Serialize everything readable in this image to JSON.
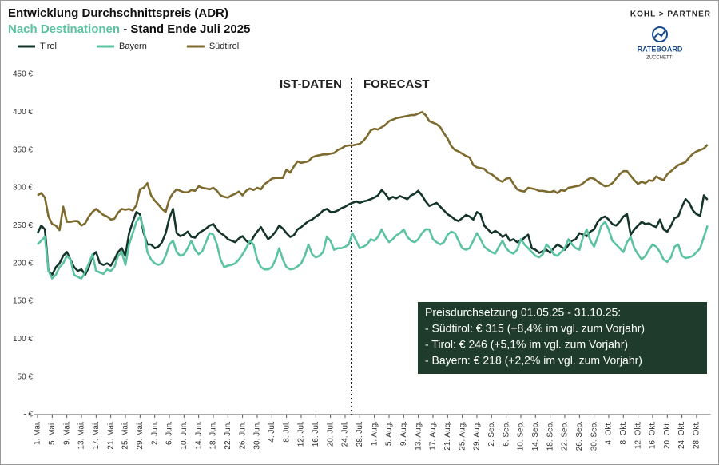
{
  "chart_data": {
    "type": "line",
    "title": "Entwicklung Durchschnittspreis (ADR)",
    "subtitle_highlight": "Nach Destinationen",
    "subtitle": " - Stand Ende Juli 2025",
    "brand": "KOHL > PARTNER",
    "logo_text": "RATEBOARD",
    "logo_subtext": "ZUCCHETTI",
    "annotations": [
      "IST-DATEN",
      "FORECAST"
    ],
    "info_box": [
      "Preisdurchsetzung 01.05.25 - 31.10.25:",
      "- Südtirol:  € 315 (+8,4% im vgl. zum Vorjahr)",
      "- Tirol:  € 246  (+5,1% im vgl. zum Vorjahr)",
      "- Bayern: € 218  (+2,2% im vgl. zum Vorjahr)"
    ],
    "ylim": [
      0,
      450
    ],
    "yticks": [
      {
        "value": 0,
        "label": "- €"
      },
      {
        "value": 50,
        "label": "50 €"
      },
      {
        "value": 100,
        "label": "100 €"
      },
      {
        "value": 150,
        "label": "150 €"
      },
      {
        "value": 200,
        "label": "200 €"
      },
      {
        "value": 250,
        "label": "250 €"
      },
      {
        "value": 300,
        "label": "300 €"
      },
      {
        "value": 350,
        "label": "350 €"
      },
      {
        "value": 400,
        "label": "400 €"
      },
      {
        "value": 450,
        "label": "450 €"
      }
    ],
    "grid": false,
    "categories": [
      "1. Mai.",
      null,
      null,
      null,
      "5. Mai.",
      null,
      null,
      null,
      "9. Mai.",
      null,
      null,
      null,
      "13. Mai.",
      null,
      null,
      null,
      "17. Mai.",
      null,
      null,
      null,
      "21. Mai.",
      null,
      null,
      null,
      "25. Mai.",
      null,
      null,
      null,
      "29. Mai.",
      null,
      null,
      null,
      "2. Jun.",
      null,
      null,
      null,
      "6. Jun.",
      null,
      null,
      null,
      "10. Jun.",
      null,
      null,
      null,
      "14. Jun.",
      null,
      null,
      null,
      "18. Jun.",
      null,
      null,
      null,
      "22. Jun.",
      null,
      null,
      null,
      "26. Jun.",
      null,
      null,
      null,
      "30. Jun.",
      null,
      null,
      null,
      "4. Jul.",
      null,
      null,
      null,
      "8. Jul.",
      null,
      null,
      null,
      "12. Jul.",
      null,
      null,
      null,
      "16. Jul.",
      null,
      null,
      null,
      "20. Jul.",
      null,
      null,
      null,
      "24. Jul.",
      null,
      null,
      null,
      "28. Jul.",
      null,
      null,
      null,
      "1. Aug.",
      null,
      null,
      null,
      "5. Aug.",
      null,
      null,
      null,
      "9. Aug.",
      null,
      null,
      null,
      "13. Aug.",
      null,
      null,
      null,
      "17. Aug.",
      null,
      null,
      null,
      "21. Aug.",
      null,
      null,
      null,
      "25. Aug.",
      null,
      null,
      null,
      "29. Aug.",
      null,
      null,
      null,
      "2. Sep.",
      null,
      null,
      null,
      "6. Sep.",
      null,
      null,
      null,
      "10. Sep.",
      null,
      null,
      null,
      "14. Sep.",
      null,
      null,
      null,
      "18. Sep.",
      null,
      null,
      null,
      "22. Sep.",
      null,
      null,
      null,
      "26. Sep.",
      null,
      null,
      null,
      "30. Sep.",
      null,
      null,
      null,
      "4. Okt.",
      null,
      null,
      null,
      "8. Okt.",
      null,
      null,
      null,
      "12. Okt.",
      null,
      null,
      null,
      "16. Okt.",
      null,
      null,
      null,
      "20. Okt.",
      null,
      null,
      null,
      "24. Okt.",
      null,
      null,
      null,
      "28. Okt.",
      null,
      null,
      null
    ],
    "series": [
      {
        "name": "Tirol",
        "color": "#16352a",
        "values": [
          240,
          250,
          245,
          190,
          185,
          195,
          200,
          210,
          215,
          205,
          195,
          190,
          192,
          185,
          195,
          210,
          215,
          200,
          198,
          200,
          197,
          205,
          215,
          220,
          210,
          240,
          255,
          268,
          265,
          240,
          225,
          225,
          220,
          222,
          228,
          240,
          260,
          272,
          240,
          236,
          238,
          242,
          235,
          234,
          240,
          243,
          246,
          250,
          252,
          245,
          240,
          237,
          232,
          230,
          228,
          233,
          236,
          230,
          226,
          235,
          242,
          248,
          240,
          232,
          236,
          242,
          250,
          246,
          240,
          235,
          237,
          245,
          248,
          252,
          256,
          258,
          262,
          265,
          270,
          272,
          268,
          268,
          270,
          273,
          275,
          278,
          280,
          282,
          280,
          282,
          283,
          285,
          287,
          290,
          297,
          292,
          285,
          288,
          286,
          289,
          287,
          285,
          290,
          292,
          296,
          290,
          282,
          276,
          278,
          280,
          275,
          270,
          265,
          262,
          258,
          256,
          260,
          264,
          262,
          258,
          268,
          265,
          250,
          245,
          240,
          243,
          240,
          235,
          238,
          230,
          232,
          228,
          230,
          234,
          238,
          220,
          218,
          214,
          216,
          218,
          214,
          220,
          225,
          222,
          218,
          224,
          230,
          232,
          240,
          238,
          236,
          242,
          245,
          255,
          260,
          262,
          258,
          252,
          250,
          255,
          262,
          265,
          238,
          245,
          250,
          255,
          252,
          253,
          250,
          248,
          258,
          245,
          242,
          250,
          260,
          262,
          275,
          285,
          280,
          270,
          265,
          263,
          290,
          284
        ]
      },
      {
        "name": "Bayern",
        "color": "#5cc3a0",
        "values": [
          225,
          230,
          235,
          190,
          180,
          185,
          195,
          200,
          210,
          205,
          185,
          182,
          180,
          188,
          200,
          212,
          190,
          188,
          186,
          192,
          190,
          195,
          210,
          215,
          198,
          225,
          240,
          255,
          262,
          245,
          215,
          205,
          200,
          198,
          200,
          210,
          225,
          230,
          215,
          210,
          212,
          220,
          230,
          218,
          212,
          216,
          228,
          240,
          238,
          225,
          205,
          195,
          197,
          198,
          200,
          205,
          212,
          220,
          230,
          225,
          205,
          195,
          192,
          192,
          195,
          205,
          220,
          205,
          195,
          192,
          193,
          196,
          200,
          210,
          225,
          212,
          208,
          210,
          215,
          235,
          230,
          218,
          220,
          220,
          222,
          225,
          240,
          230,
          220,
          222,
          225,
          232,
          230,
          235,
          245,
          235,
          228,
          232,
          237,
          240,
          245,
          235,
          230,
          228,
          232,
          240,
          245,
          245,
          232,
          228,
          225,
          228,
          238,
          242,
          240,
          230,
          220,
          218,
          220,
          230,
          240,
          232,
          222,
          218,
          215,
          213,
          222,
          230,
          220,
          215,
          213,
          218,
          232,
          225,
          220,
          215,
          210,
          208,
          212,
          225,
          220,
          212,
          210,
          215,
          220,
          232,
          225,
          220,
          218,
          235,
          245,
          230,
          222,
          235,
          250,
          255,
          245,
          230,
          225,
          220,
          215,
          228,
          235,
          220,
          212,
          205,
          210,
          218,
          225,
          222,
          215,
          205,
          202,
          208,
          222,
          225,
          210,
          207,
          208,
          210,
          215,
          220,
          235,
          250
        ]
      },
      {
        "name": "Südtirol",
        "color": "#7d6a2e",
        "values": [
          290,
          293,
          287,
          262,
          252,
          250,
          244,
          275,
          255,
          255,
          256,
          256,
          250,
          253,
          262,
          268,
          272,
          268,
          264,
          262,
          258,
          259,
          267,
          272,
          271,
          272,
          270,
          277,
          298,
          300,
          306,
          290,
          283,
          278,
          272,
          268,
          285,
          293,
          298,
          296,
          294,
          294,
          297,
          296,
          302,
          300,
          299,
          298,
          300,
          296,
          290,
          288,
          287,
          290,
          292,
          295,
          290,
          296,
          299,
          297,
          300,
          298,
          305,
          308,
          312,
          313,
          313,
          313,
          324,
          320,
          328,
          335,
          333,
          334,
          335,
          340,
          342,
          343,
          344,
          344,
          345,
          346,
          350,
          352,
          355,
          356,
          356,
          357,
          358,
          362,
          368,
          376,
          378,
          377,
          380,
          383,
          388,
          390,
          392,
          393,
          394,
          395,
          396,
          396,
          398,
          400,
          396,
          388,
          386,
          384,
          380,
          372,
          365,
          355,
          350,
          348,
          345,
          342,
          340,
          330,
          327,
          326,
          325,
          320,
          318,
          314,
          310,
          308,
          312,
          313,
          305,
          298,
          296,
          295,
          300,
          299,
          298,
          296,
          296,
          295,
          294,
          296,
          293,
          297,
          296,
          300,
          301,
          302,
          303,
          306,
          310,
          313,
          312,
          308,
          305,
          302,
          303,
          306,
          312,
          318,
          322,
          322,
          316,
          310,
          305,
          308,
          306,
          310,
          309,
          315,
          312,
          310,
          318,
          322,
          326,
          330,
          332,
          334,
          340,
          345,
          348,
          350,
          352,
          357
        ]
      }
    ]
  }
}
